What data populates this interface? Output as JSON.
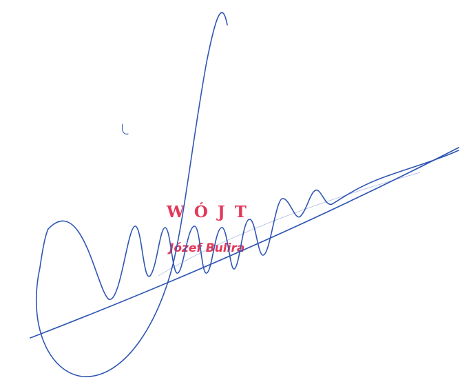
{
  "stamp": {
    "title": "WÓJT",
    "name": "Józef Bulira"
  },
  "colors": {
    "ink": "#2f56b3",
    "stamp": "#e2385a",
    "background": "#ffffff"
  }
}
